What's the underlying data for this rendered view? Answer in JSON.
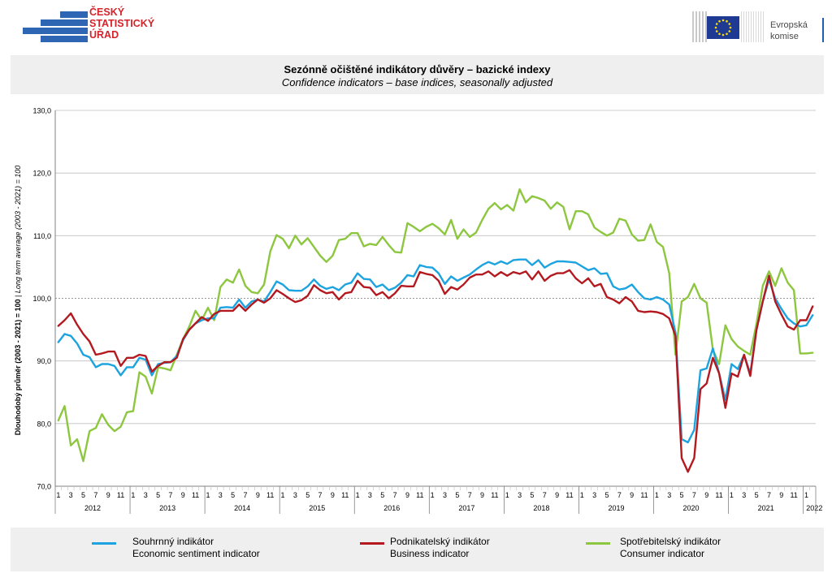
{
  "header": {
    "csu_logo_lines": [
      "ČESKÝ",
      "STATISTICKÝ",
      "ÚŘAD"
    ],
    "eu_logo_lines": [
      "Evropská",
      "komise"
    ]
  },
  "title": {
    "cz": "Sezónně očištěné indikátory důvěry – bazické indexy",
    "en": "Confidence indicators – base indices, seasonally adjusted"
  },
  "colors": {
    "economic": "#1ca3e0",
    "business": "#b3191f",
    "consumer": "#8dc63f",
    "grid": "#bfbfbf",
    "panel": "#efefef"
  },
  "chart_data": {
    "type": "line",
    "ylabel_main": "Dlouhodobý průměr (2003 - 2021) = 100",
    "ylabel_sub": "Long term average (2003 - 2021) = 100",
    "ylim": [
      70,
      130
    ],
    "yticks": [
      "70,0",
      "80,0",
      "90,0",
      "100,0",
      "110,0",
      "120,0",
      "130,0"
    ],
    "month_ticks": [
      "1",
      "3",
      "5",
      "7",
      "9",
      "11"
    ],
    "years": [
      "2012",
      "2013",
      "2014",
      "2015",
      "2016",
      "2017",
      "2018",
      "2019",
      "2020",
      "2021",
      "2022"
    ],
    "x_start": "2012-01",
    "reference_line": 100,
    "series": [
      {
        "name": "Souhrnný indikátor",
        "name_en": "Economic sentiment indicator",
        "color": "#1ca3e0",
        "values": [
          93.0,
          94.3,
          94.0,
          92.8,
          91.0,
          90.6,
          89.0,
          89.5,
          89.5,
          89.2,
          87.7,
          89.0,
          89.0,
          90.5,
          90.2,
          87.7,
          89.5,
          89.7,
          89.8,
          90.8,
          93.3,
          95.0,
          96.0,
          96.5,
          96.8,
          96.8,
          98.5,
          98.6,
          98.5,
          99.8,
          98.5,
          99.5,
          99.8,
          99.5,
          101.0,
          102.7,
          102.2,
          101.3,
          101.2,
          101.2,
          101.9,
          103.0,
          102.0,
          101.5,
          101.8,
          101.3,
          102.2,
          102.5,
          104.0,
          103.1,
          103.0,
          101.8,
          102.2,
          101.3,
          101.7,
          102.5,
          103.7,
          103.5,
          105.3,
          105.0,
          104.9,
          104.0,
          102.3,
          103.5,
          102.8,
          103.3,
          103.8,
          104.6,
          105.3,
          105.8,
          105.4,
          105.9,
          105.5,
          106.1,
          106.2,
          106.2,
          105.3,
          106.1,
          104.9,
          105.5,
          105.9,
          105.9,
          105.8,
          105.7,
          105.1,
          104.5,
          104.8,
          103.9,
          104.0,
          101.9,
          101.4,
          101.6,
          102.2,
          101.0,
          100.0,
          99.8,
          100.2,
          99.8,
          99.0,
          94.5,
          77.5,
          77.0,
          79.0,
          88.5,
          88.8,
          92.0,
          88.0,
          83.8,
          89.5,
          88.7,
          91.0,
          88.0,
          95.0,
          99.5,
          103.0,
          100.0,
          98.3,
          96.8,
          96.0,
          95.5,
          95.7,
          97.3
        ]
      },
      {
        "name": "Podnikatelský indikátor",
        "name_en": "Business indicator",
        "color": "#b3191f",
        "values": [
          95.6,
          96.5,
          97.6,
          95.8,
          94.3,
          93.1,
          91.0,
          91.2,
          91.5,
          91.5,
          89.2,
          90.5,
          90.5,
          91.0,
          90.8,
          88.3,
          89.2,
          89.8,
          89.8,
          90.5,
          93.5,
          95.0,
          96.0,
          97.0,
          96.4,
          97.5,
          98.0,
          98.0,
          98.0,
          99.0,
          98.0,
          99.0,
          99.8,
          99.3,
          100.0,
          101.3,
          100.7,
          100.0,
          99.4,
          99.7,
          100.4,
          102.1,
          101.3,
          100.8,
          101.0,
          99.8,
          100.8,
          101.0,
          102.8,
          101.8,
          101.7,
          100.5,
          101.0,
          100.0,
          100.8,
          102.0,
          101.9,
          101.9,
          104.2,
          103.9,
          103.7,
          102.8,
          100.7,
          101.8,
          101.4,
          102.2,
          103.3,
          103.8,
          103.8,
          104.3,
          103.5,
          104.2,
          103.6,
          104.2,
          103.9,
          104.3,
          103.0,
          104.3,
          102.8,
          103.6,
          104.0,
          104.0,
          104.5,
          103.2,
          102.4,
          103.2,
          101.9,
          102.3,
          100.2,
          99.8,
          99.2,
          100.2,
          99.5,
          98.0,
          97.8,
          97.9,
          97.8,
          97.5,
          96.8,
          94.0,
          74.5,
          72.3,
          74.5,
          85.5,
          86.4,
          90.5,
          88.0,
          82.5,
          88.0,
          87.5,
          91.0,
          87.6,
          95.0,
          99.5,
          103.6,
          99.5,
          97.4,
          95.5,
          95.0,
          96.5,
          96.5,
          98.7
        ]
      },
      {
        "name": "Spotřebitelský indikátor",
        "name_en": "Consumer indicator",
        "color": "#8dc63f",
        "values": [
          80.5,
          82.8,
          76.5,
          77.5,
          74.0,
          78.8,
          79.3,
          81.5,
          79.8,
          78.8,
          79.5,
          81.8,
          82.0,
          88.2,
          87.5,
          84.8,
          89.0,
          88.8,
          88.5,
          91.0,
          93.5,
          95.5,
          98.0,
          96.5,
          98.5,
          96.5,
          101.8,
          103.0,
          102.5,
          104.6,
          102.0,
          101.0,
          100.8,
          102.2,
          107.5,
          110.1,
          109.5,
          108.0,
          110.0,
          108.6,
          109.6,
          108.2,
          106.8,
          105.8,
          106.8,
          109.3,
          109.5,
          110.4,
          110.4,
          108.3,
          108.7,
          108.5,
          109.8,
          108.5,
          107.4,
          107.3,
          112.0,
          111.4,
          110.7,
          111.4,
          111.9,
          111.2,
          110.2,
          112.5,
          109.5,
          111.0,
          109.8,
          110.5,
          112.5,
          114.3,
          115.2,
          114.2,
          114.9,
          114.0,
          117.4,
          115.3,
          116.3,
          116.0,
          115.6,
          114.3,
          115.3,
          114.6,
          111.0,
          113.9,
          113.9,
          113.4,
          111.3,
          110.6,
          110.0,
          110.5,
          112.7,
          112.4,
          110.2,
          109.2,
          109.3,
          111.8,
          109.0,
          108.2,
          104.0,
          91.0,
          99.5,
          100.2,
          102.3,
          100.0,
          99.3,
          91.8,
          89.5,
          95.7,
          93.5,
          92.3,
          91.6,
          91.0,
          96.0,
          102.0,
          104.3,
          102.0,
          104.8,
          102.5,
          101.3,
          91.2,
          91.2,
          91.3
        ]
      }
    ]
  }
}
